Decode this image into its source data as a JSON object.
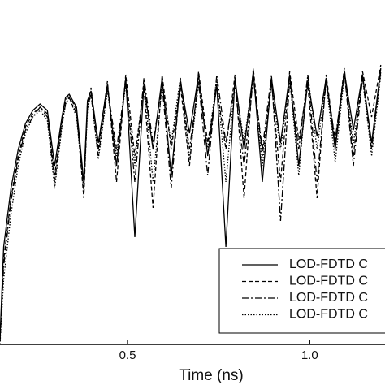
{
  "chart_data": {
    "type": "line",
    "xlabel": "Time (ns)",
    "xlim": [
      0.15,
      1.2
    ],
    "ylim": [
      0,
      1
    ],
    "xticks": [
      0.5,
      {
        "value": 1,
        "label": "1.0"
      }
    ],
    "x": [
      0.15,
      0.16,
      0.18,
      0.2,
      0.22,
      0.24,
      0.26,
      0.28,
      0.3,
      0.32,
      0.33,
      0.34,
      0.36,
      0.38,
      0.39,
      0.4,
      0.42,
      0.445,
      0.47,
      0.495,
      0.52,
      0.545,
      0.57,
      0.595,
      0.62,
      0.645,
      0.67,
      0.695,
      0.72,
      0.745,
      0.77,
      0.795,
      0.82,
      0.845,
      0.87,
      0.895,
      0.92,
      0.945,
      0.97,
      0.995,
      1.02,
      1.045,
      1.07,
      1.095,
      1.12,
      1.145,
      1.17,
      1.195
    ],
    "series": [
      {
        "name": "LOD-FDTD C",
        "color": "#000000",
        "style": "solid",
        "values": [
          0.02,
          0.3,
          0.48,
          0.6,
          0.68,
          0.72,
          0.74,
          0.72,
          0.55,
          0.7,
          0.76,
          0.77,
          0.73,
          0.5,
          0.75,
          0.78,
          0.62,
          0.8,
          0.55,
          0.82,
          0.33,
          0.8,
          0.6,
          0.82,
          0.52,
          0.81,
          0.65,
          0.83,
          0.58,
          0.8,
          0.3,
          0.82,
          0.6,
          0.84,
          0.5,
          0.82,
          0.62,
          0.83,
          0.55,
          0.81,
          0.64,
          0.82,
          0.6,
          0.84,
          0.66,
          0.83,
          0.62,
          0.85
        ]
      },
      {
        "name": "LOD-FDTD C",
        "color": "#000000",
        "style": "dashed",
        "values": [
          0.01,
          0.26,
          0.45,
          0.58,
          0.67,
          0.71,
          0.73,
          0.71,
          0.52,
          0.69,
          0.75,
          0.77,
          0.72,
          0.45,
          0.74,
          0.79,
          0.6,
          0.81,
          0.5,
          0.83,
          0.58,
          0.79,
          0.42,
          0.83,
          0.6,
          0.8,
          0.55,
          0.84,
          0.62,
          0.79,
          0.6,
          0.83,
          0.45,
          0.85,
          0.58,
          0.81,
          0.5,
          0.84,
          0.63,
          0.8,
          0.45,
          0.83,
          0.62,
          0.85,
          0.58,
          0.84,
          0.7,
          0.86
        ]
      },
      {
        "name": "LOD-FDTD C",
        "color": "#000000",
        "style": "dashdot",
        "values": [
          0.01,
          0.24,
          0.44,
          0.57,
          0.66,
          0.7,
          0.73,
          0.7,
          0.5,
          0.68,
          0.74,
          0.76,
          0.71,
          0.48,
          0.73,
          0.77,
          0.58,
          0.79,
          0.6,
          0.81,
          0.5,
          0.82,
          0.62,
          0.8,
          0.48,
          0.82,
          0.6,
          0.81,
          0.52,
          0.83,
          0.62,
          0.8,
          0.55,
          0.82,
          0.6,
          0.83,
          0.38,
          0.81,
          0.6,
          0.83,
          0.5,
          0.81,
          0.63,
          0.84,
          0.55,
          0.82,
          0.6,
          0.84
        ]
      },
      {
        "name": "LOD-FDTD C",
        "color": "#000000",
        "style": "dotted",
        "values": [
          0.0,
          0.2,
          0.4,
          0.55,
          0.65,
          0.7,
          0.72,
          0.69,
          0.48,
          0.67,
          0.74,
          0.76,
          0.7,
          0.47,
          0.72,
          0.77,
          0.57,
          0.78,
          0.58,
          0.8,
          0.55,
          0.81,
          0.5,
          0.8,
          0.62,
          0.82,
          0.57,
          0.8,
          0.6,
          0.82,
          0.5,
          0.81,
          0.62,
          0.83,
          0.55,
          0.8,
          0.6,
          0.82,
          0.52,
          0.83,
          0.6,
          0.81,
          0.56,
          0.83,
          0.62,
          0.82,
          0.58,
          0.83
        ]
      }
    ]
  }
}
